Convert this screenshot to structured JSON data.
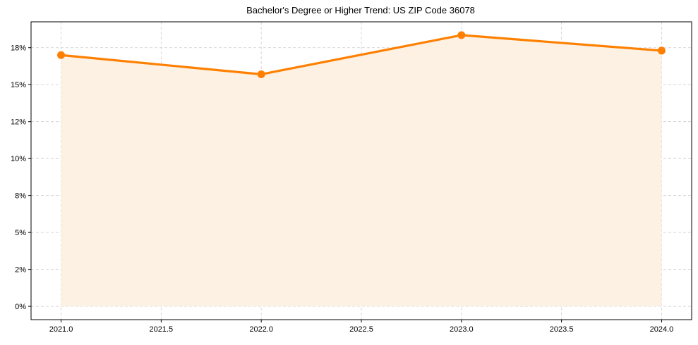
{
  "chart_data": {
    "type": "line",
    "title": "Bachelor's Degree or Higher Trend: US ZIP Code 36078",
    "xlabel": "",
    "ylabel": "",
    "x": [
      2021,
      2022,
      2023,
      2024
    ],
    "series": [
      {
        "name": "Bachelor's Degree or Higher",
        "values": [
          17.0,
          15.7,
          18.35,
          17.3
        ],
        "color": "#ff8000",
        "fill": "#fdf1e4"
      }
    ],
    "xticks": [
      "2021.0",
      "2021.5",
      "2022.0",
      "2022.5",
      "2023.0",
      "2023.5",
      "2024.0"
    ],
    "xtick_values": [
      2021.0,
      2021.5,
      2022.0,
      2022.5,
      2023.0,
      2023.5,
      2024.0
    ],
    "yticks": [
      "0%",
      "2%",
      "5%",
      "8%",
      "10%",
      "12%",
      "15%",
      "18%"
    ],
    "ytick_values": [
      0,
      2.5,
      5,
      7.5,
      10,
      12.5,
      15,
      17.5
    ],
    "xlim": [
      2020.85,
      2024.15
    ],
    "ylim": [
      -0.9,
      19.25
    ],
    "grid": true,
    "legend": "none"
  }
}
